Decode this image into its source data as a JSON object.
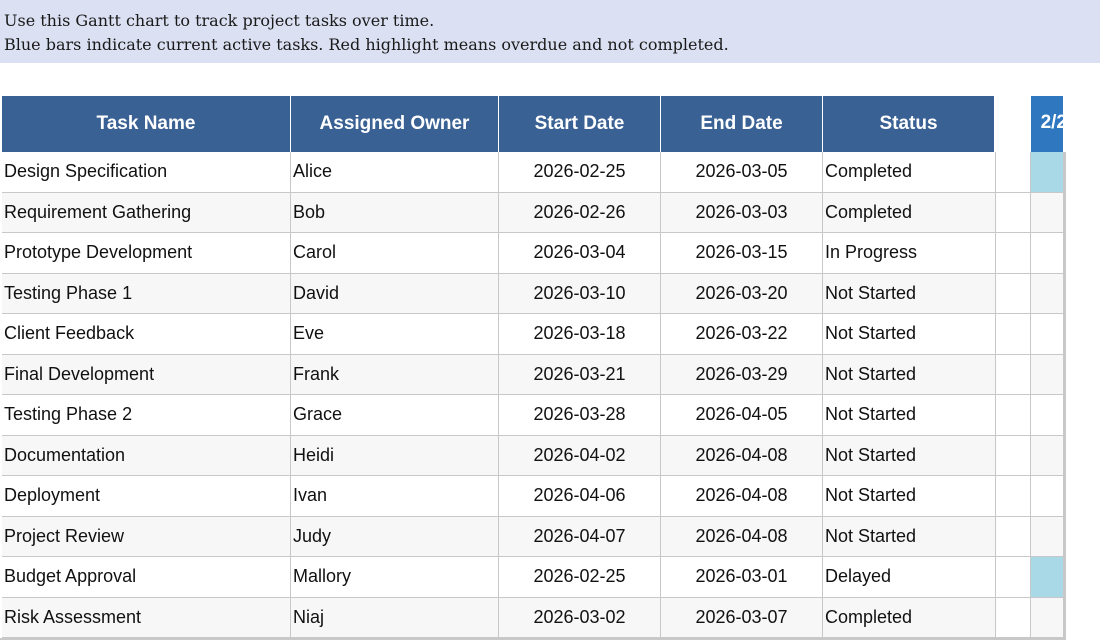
{
  "instructions": {
    "line1": "Use this Gantt chart to track project tasks over time.",
    "line2": "Blue bars indicate current active tasks. Red highlight means overdue and not completed."
  },
  "headers": {
    "task": "Task Name",
    "owner": "Assigned Owner",
    "start": "Start Date",
    "end": "End Date",
    "status": "Status",
    "gantt_date": "2/2"
  },
  "colors": {
    "header_bg": "#3a6193",
    "gantt_header_bg": "#2f78c0",
    "active_bar": "#a9d8e6",
    "banner_bg": "#dbe0f2"
  },
  "rows": [
    {
      "task": "Design Specification",
      "owner": "Alice",
      "start": "2026-02-25",
      "end": "2026-03-05",
      "status": "Completed",
      "active": true
    },
    {
      "task": "Requirement Gathering",
      "owner": "Bob",
      "start": "2026-02-26",
      "end": "2026-03-03",
      "status": "Completed",
      "active": false
    },
    {
      "task": "Prototype Development",
      "owner": "Carol",
      "start": "2026-03-04",
      "end": "2026-03-15",
      "status": "In Progress",
      "active": false
    },
    {
      "task": "Testing Phase 1",
      "owner": "David",
      "start": "2026-03-10",
      "end": "2026-03-20",
      "status": "Not Started",
      "active": false
    },
    {
      "task": "Client Feedback",
      "owner": "Eve",
      "start": "2026-03-18",
      "end": "2026-03-22",
      "status": "Not Started",
      "active": false
    },
    {
      "task": "Final Development",
      "owner": "Frank",
      "start": "2026-03-21",
      "end": "2026-03-29",
      "status": "Not Started",
      "active": false
    },
    {
      "task": "Testing Phase 2",
      "owner": "Grace",
      "start": "2026-03-28",
      "end": "2026-04-05",
      "status": "Not Started",
      "active": false
    },
    {
      "task": "Documentation",
      "owner": "Heidi",
      "start": "2026-04-02",
      "end": "2026-04-08",
      "status": "Not Started",
      "active": false
    },
    {
      "task": "Deployment",
      "owner": "Ivan",
      "start": "2026-04-06",
      "end": "2026-04-08",
      "status": "Not Started",
      "active": false
    },
    {
      "task": "Project Review",
      "owner": "Judy",
      "start": "2026-04-07",
      "end": "2026-04-08",
      "status": "Not Started",
      "active": false
    },
    {
      "task": "Budget Approval",
      "owner": "Mallory",
      "start": "2026-02-25",
      "end": "2026-03-01",
      "status": "Delayed",
      "active": true
    },
    {
      "task": "Risk Assessment",
      "owner": "Niaj",
      "start": "2026-03-02",
      "end": "2026-03-07",
      "status": "Completed",
      "active": false
    }
  ]
}
